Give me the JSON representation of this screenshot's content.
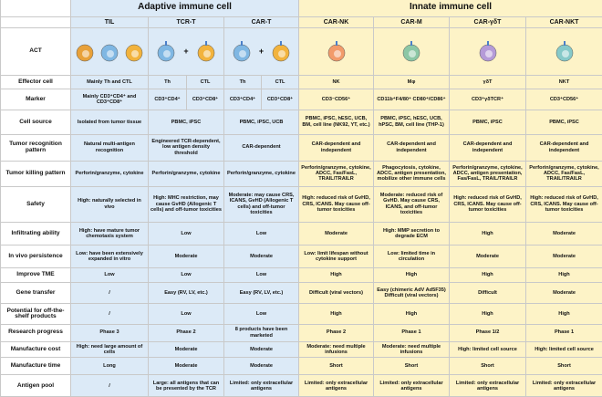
{
  "groups": {
    "adaptive": "Adaptive immune cell",
    "innate": "Innate immune cell"
  },
  "columns": {
    "til": "TIL",
    "tcrt": "TCR-T",
    "cart": "CAR-T",
    "carnk": "CAR-NK",
    "carm": "CAR-M",
    "cargdt": "CAR-γδT",
    "carnkt": "CAR-NKT"
  },
  "icon_colors": {
    "til": "#e8a13a",
    "tcr_th": "#7fb7e3",
    "tcr_ctl": "#f2b33d",
    "car_th": "#7fb7e3",
    "car_ctl": "#f2b33d",
    "nk": "#f29b6b",
    "m": "#8cc7a5",
    "gdt": "#b59bd8",
    "nkt": "#86c9c9"
  },
  "rows": [
    {
      "label": "ACT",
      "type": "icons"
    },
    {
      "label": "Effector cell",
      "til": "Mainly Th and CTL",
      "tcr_th": "Th",
      "tcr_ctl": "CTL",
      "car_th": "Th",
      "car_ctl": "CTL",
      "carnk": "NK",
      "carm": "Mφ",
      "cargdt": "γδT",
      "carnkt": "NKT"
    },
    {
      "label": "Marker",
      "til": "Mainly CD3⁺CD4⁺ and CD3⁺CD8⁺",
      "tcr_th": "CD3⁺CD4⁺",
      "tcr_ctl": "CD3⁺CD8⁺",
      "car_th": "CD3⁺CD4⁺",
      "car_ctl": "CD3⁺CD8⁺",
      "carnk": "CD3⁻CD56⁺",
      "carm": "CD11b⁺F4/80⁺ CD80⁺/CD86⁺",
      "cargdt": "CD3⁺γδTCR⁺",
      "carnkt": "CD3⁺CD56⁺"
    },
    {
      "label": "Cell source",
      "til": "Isolated from tumor tissue",
      "tcrt": "PBMC, iPSC",
      "cart": "PBMC, iPSC, UCB",
      "carnk": "PBMC, iPSC, hESC, UCB, BM, cell line (NK92, YT, etc.)",
      "carm": "PBMC, iPSC, hESC, UCB, hPSC, BM, cell line (THP-1)",
      "cargdt": "PBMC, iPSC",
      "carnkt": "PBMC, iPSC"
    },
    {
      "label": "Tumor recognition pattern",
      "til": "Natural multi-antigen recognition",
      "tcrt": "Engineered TCR-dependent, low antigen density threshold",
      "cart": "CAR-dependent",
      "carnk": "CAR-dependent and independent",
      "carm": "CAR-dependent and independent",
      "cargdt": "CAR-dependent and independent",
      "carnkt": "CAR-dependent and independent"
    },
    {
      "label": "Tumor killing pattern",
      "til": "Perforin/granzyme, cytokine",
      "tcrt": "Perforin/granzyme, cytokine",
      "cart": "Perforin/granzyme, cytokine",
      "carnk": "Perforin/granzyme, cytokine, ADCC, Fas/FasL, TRAIL/TRAILR",
      "carm": "Phagocytosis, cytokine, ADCC, antigen presentation, mobilize other immune cells",
      "cargdt": "Perforin/granzyme, cytokine, ADCC, antigen presentation, Fas/FasL, TRAIL/TRAILR",
      "carnkt": "Perforin/granzyme, cytokine, ADCC, Fas/FasL, TRAIL/TRAILR"
    },
    {
      "label": "Safety",
      "til": "High: naturally selected in vivo",
      "tcrt": "High: MHC restriction, may cause GvHD (Allogenic T cells) and off-tumor toxicities",
      "cart": "Moderate: may cause CRS, ICANS, GvHD (Allogenic T cells) and off-tumor toxicities",
      "carnk": "High: reduced risk of GvHD, CRS, ICANS. May cause off-tumor toxicities",
      "carm": "Moderate: reduced risk of GvHD. May cause CRS, ICANS, and off-tumor toxicities",
      "cargdt": "High: reduced risk of GvHD, CRS, ICANS. May cause off-tumor toxicities",
      "carnkt": "High: reduced risk of GvHD, CRS, ICANS. May cause off-tumor toxicities"
    },
    {
      "label": "Infiltrating ability",
      "til": "High: have mature tumor chemotaxis system",
      "tcrt": "Low",
      "cart": "Low",
      "carnk": "Moderate",
      "carm": "High: MMP secretion to degrade ECM",
      "cargdt": "High",
      "carnkt": "Moderate"
    },
    {
      "label": "In vivo persistence",
      "til": "Low: have been extensively expanded in vitro",
      "tcrt": "Moderate",
      "cart": "Moderate",
      "carnk": "Low: limit lifespan without cytokine support",
      "carm": "Low: limited time in circulation",
      "cargdt": "Moderate",
      "carnkt": "Moderate"
    },
    {
      "label": "Improve TME",
      "til": "Low",
      "tcrt": "Low",
      "cart": "Low",
      "carnk": "High",
      "carm": "High",
      "cargdt": "High",
      "carnkt": "High"
    },
    {
      "label": "Gene transfer",
      "til": "/",
      "tcrt": "Easy (RV, LV, etc.)",
      "cart": "Easy (RV, LV, etc.)",
      "carnk": "Difficult (viral vectors)",
      "carm": "Easy (chimeric AdV Ad5F35) Difficult (viral vectors)",
      "cargdt": "Difficult",
      "carnkt": "Moderate"
    },
    {
      "label": "Potential for off-the-shelf products",
      "til": "/",
      "tcrt": "Low",
      "cart": "Low",
      "carnk": "High",
      "carm": "High",
      "cargdt": "High",
      "carnkt": "High"
    },
    {
      "label": "Research progress",
      "til": "Phase 3",
      "tcrt": "Phase 2",
      "cart": "8 products have been marketed",
      "carnk": "Phase 2",
      "carm": "Phase 1",
      "cargdt": "Phase 1/2",
      "carnkt": "Phase 1"
    },
    {
      "label": "Manufacture cost",
      "til": "High: need large amount of cells",
      "tcrt": "Moderate",
      "cart": "Moderate",
      "carnk": "Moderate: need multiple infusions",
      "carm": "Moderate: need multiple infusions",
      "cargdt": "High: limited cell source",
      "carnkt": "High: limited cell source"
    },
    {
      "label": "Manufacture time",
      "til": "Long",
      "tcrt": "Moderate",
      "cart": "Moderate",
      "carnk": "Short",
      "carm": "Short",
      "cargdt": "Short",
      "carnkt": "Short"
    },
    {
      "label": "Antigen pool",
      "til": "/",
      "tcrt": "Large: all antigens that can be presented by the TCR",
      "cart": "Limited: only extracellular antigens",
      "carnk": "Limited: only extracellular antigens",
      "carm": "Limited: only extracellular antigens",
      "cargdt": "Limited: only extracellular antigens",
      "carnkt": "Limited: only extracellular antigens"
    }
  ]
}
